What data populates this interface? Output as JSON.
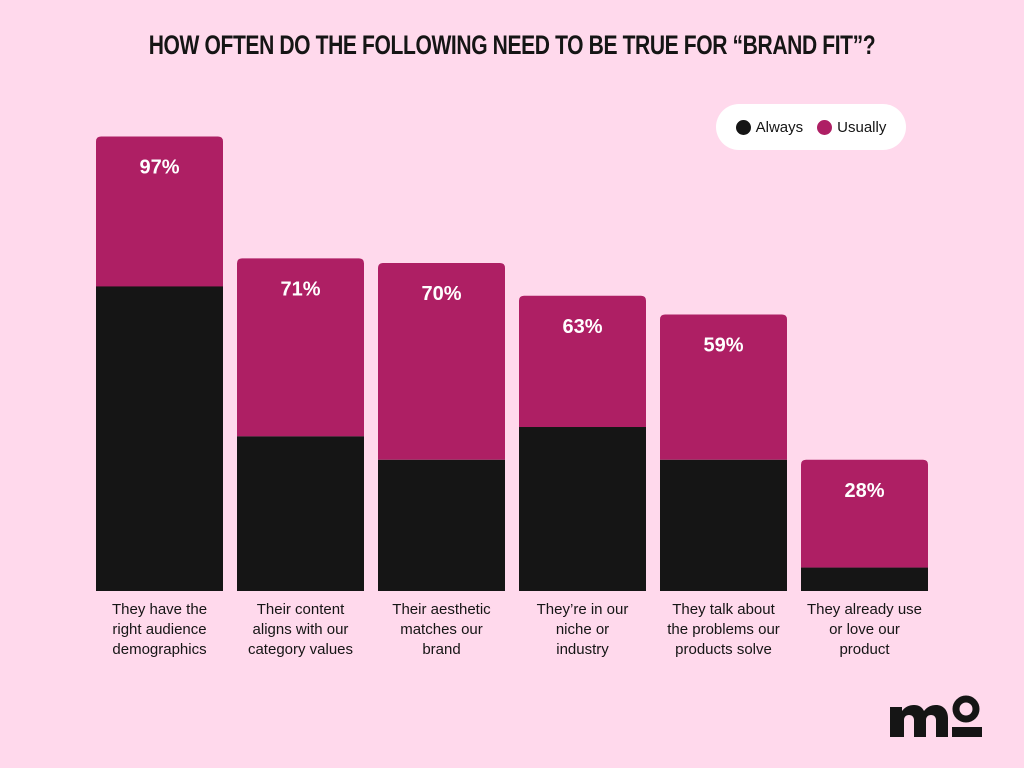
{
  "colors": {
    "background": "#FFD9EC",
    "always": "#151515",
    "usually": "#AE1F64",
    "label": "#ffffff"
  },
  "chart_data": {
    "type": "bar",
    "stacked": true,
    "title": "HOW OFTEN DO THE FOLLOWING NEED TO BE TRUE FOR “BRAND FIT”?",
    "categories": [
      "They have the right audience demographics",
      "Their content aligns with our category values",
      "Their aesthetic matches our brand",
      "They’re in our niche or industry",
      "They talk about the problems our products solve",
      "They already use or love our product"
    ],
    "category_lines": [
      [
        "They have the",
        "right audience",
        "demographics"
      ],
      [
        "Their content",
        "aligns with our",
        "category values"
      ],
      [
        "Their aesthetic",
        "matches our",
        "brand"
      ],
      [
        "They’re in our",
        "niche or",
        "industry"
      ],
      [
        "They talk about",
        "the problems our",
        "products solve"
      ],
      [
        "They already use",
        "or love our",
        "product"
      ]
    ],
    "series": [
      {
        "name": "Always",
        "values": [
          65,
          33,
          28,
          35,
          28,
          5
        ]
      },
      {
        "name": "Usually",
        "values": [
          32,
          38,
          42,
          28,
          31,
          23
        ]
      }
    ],
    "totals": [
      97,
      71,
      70,
      63,
      59,
      28
    ],
    "total_labels": [
      "97%",
      "71%",
      "70%",
      "63%",
      "59%",
      "28%"
    ],
    "ylim": [
      0,
      100
    ],
    "legend_position": "top-right",
    "grid": false
  },
  "logo": {
    "text": "mo"
  }
}
